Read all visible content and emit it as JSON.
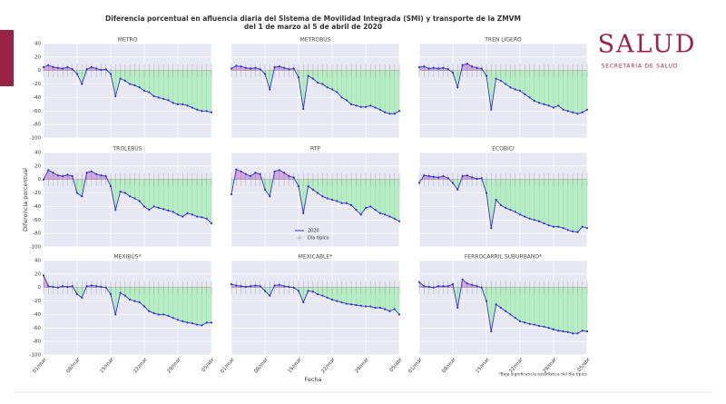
{
  "chart_data": {
    "type": "line",
    "title": "Diferencia porcentual en afluencia diaria del Sistema de Movilidad Integrada (SMI) y transporte de la ZMVM",
    "subtitle": "del 1 de marzo al 5 de abril de 2020",
    "x_label": "Fecha",
    "y_label": "Diferencia porcentual",
    "footnote": "*Baja significancia estadística del día típico",
    "categories": [
      "01/mar",
      null,
      null,
      null,
      null,
      null,
      null,
      "08/mar",
      null,
      null,
      null,
      null,
      null,
      null,
      "15/mar",
      null,
      null,
      null,
      null,
      null,
      null,
      "22/mar",
      null,
      null,
      null,
      null,
      null,
      null,
      "29/mar",
      null,
      null,
      null,
      null,
      null,
      null,
      "05/abr"
    ],
    "ylim": [
      -100,
      40
    ],
    "yticks": [
      -100,
      -80,
      -60,
      -40,
      -20,
      0,
      20,
      40
    ],
    "grid": true,
    "color": "#3535d0",
    "legend": [
      {
        "name": "2020",
        "color": "#3535d0"
      },
      {
        "name": "Día típico",
        "color": "#9a9a9a"
      }
    ],
    "panels": [
      {
        "title": "METRO",
        "values": [
          5,
          8,
          5,
          4,
          3,
          5,
          2,
          -5,
          -20,
          2,
          5,
          3,
          1,
          2,
          -5,
          -38,
          -12,
          -15,
          -20,
          -22,
          -25,
          -30,
          -32,
          -38,
          -40,
          -42,
          -44,
          -48,
          -50,
          -50,
          -52,
          -55,
          -58,
          -60,
          -60,
          -62
        ]
      },
      {
        "title": "METROBÚS",
        "values": [
          3,
          7,
          6,
          4,
          3,
          4,
          2,
          -5,
          -28,
          5,
          6,
          4,
          2,
          3,
          -10,
          -57,
          -8,
          -12,
          -18,
          -20,
          -25,
          -28,
          -32,
          -40,
          -44,
          -50,
          -52,
          -54,
          -54,
          -52,
          -55,
          -58,
          -62,
          -64,
          -64,
          -60
        ]
      },
      {
        "title": "TREN LIGERO",
        "values": [
          5,
          6,
          3,
          4,
          3,
          4,
          2,
          -3,
          -25,
          8,
          10,
          6,
          4,
          3,
          -8,
          -58,
          -12,
          -15,
          -20,
          -25,
          -28,
          -30,
          -35,
          -40,
          -45,
          -48,
          -50,
          -52,
          -55,
          -52,
          -58,
          -60,
          -62,
          -64,
          -62,
          -58
        ]
      },
      {
        "title": "TROLEBÚS",
        "values": [
          0,
          14,
          10,
          6,
          5,
          7,
          5,
          -20,
          -25,
          10,
          12,
          8,
          6,
          5,
          -10,
          -45,
          -18,
          -20,
          -25,
          -28,
          -32,
          -40,
          -45,
          -40,
          -42,
          -44,
          -46,
          -48,
          -52,
          -55,
          -50,
          -52,
          -55,
          -56,
          -58,
          -65
        ]
      },
      {
        "title": "RTP",
        "values": [
          -22,
          15,
          12,
          8,
          5,
          10,
          8,
          -15,
          -25,
          12,
          14,
          10,
          5,
          3,
          -10,
          -50,
          -10,
          -15,
          -20,
          -25,
          -28,
          -30,
          -32,
          -35,
          -35,
          -38,
          -45,
          -52,
          -42,
          -40,
          -45,
          -50,
          -52,
          -55,
          -58,
          -62
        ]
      },
      {
        "title": "ECOBICI",
        "values": [
          -5,
          6,
          5,
          4,
          3,
          5,
          2,
          -5,
          -15,
          5,
          6,
          3,
          1,
          2,
          -20,
          -72,
          -30,
          -38,
          -42,
          -45,
          -48,
          -52,
          -55,
          -58,
          -60,
          -62,
          -65,
          -68,
          -70,
          -70,
          -72,
          -75,
          -77,
          -78,
          -70,
          -72
        ]
      },
      {
        "title": "MEXIBÚS*",
        "values": [
          18,
          2,
          1,
          0,
          2,
          1,
          2,
          -10,
          -15,
          2,
          3,
          2,
          1,
          0,
          -10,
          -40,
          -8,
          -12,
          -18,
          -20,
          -22,
          -28,
          -35,
          -38,
          -40,
          -40,
          -42,
          -45,
          -48,
          -50,
          -52,
          -53,
          -55,
          -56,
          -52,
          -52
        ]
      },
      {
        "title": "MEXICABLE*",
        "values": [
          5,
          3,
          2,
          1,
          2,
          3,
          2,
          -5,
          -12,
          3,
          4,
          2,
          1,
          0,
          -5,
          -22,
          -5,
          -6,
          -10,
          -12,
          -15,
          -18,
          -20,
          -22,
          -24,
          -25,
          -26,
          -27,
          -28,
          -28,
          -30,
          -30,
          -32,
          -35,
          -32,
          -40
        ]
      },
      {
        "title": "FERROCARRIL SUBURBANO*",
        "values": [
          8,
          2,
          1,
          0,
          2,
          2,
          2,
          5,
          -30,
          12,
          6,
          4,
          2,
          0,
          -20,
          -65,
          -25,
          -30,
          -35,
          -40,
          -45,
          -50,
          -52,
          -54,
          -55,
          -57,
          -58,
          -60,
          -62,
          -64,
          -65,
          -66,
          -68,
          -68,
          -64,
          -65
        ]
      }
    ]
  },
  "logo": {
    "title": "SALUD",
    "subtitle": "SECRETARÍA DE SALUD"
  }
}
